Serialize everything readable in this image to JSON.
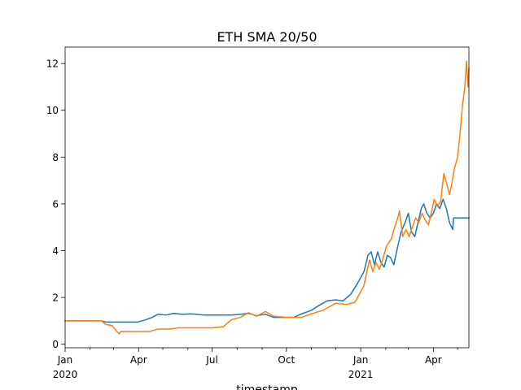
{
  "chart_data": {
    "type": "line",
    "title": "ETH SMA 20/50",
    "xlabel": "timestamp",
    "ylabel": "",
    "xlim": [
      "2020-01-01",
      "2021-05-15"
    ],
    "ylim": [
      -0.15,
      12.7
    ],
    "grid": false,
    "legend": "none",
    "x_ticks": [
      {
        "date": "2020-01-01",
        "label": "Jan",
        "sublabel": "2020"
      },
      {
        "date": "2020-04-01",
        "label": "Apr",
        "sublabel": ""
      },
      {
        "date": "2020-07-01",
        "label": "Jul",
        "sublabel": ""
      },
      {
        "date": "2020-10-01",
        "label": "Oct",
        "sublabel": ""
      },
      {
        "date": "2021-01-01",
        "label": "Jan",
        "sublabel": "2021"
      },
      {
        "date": "2021-04-01",
        "label": "Apr",
        "sublabel": ""
      }
    ],
    "x_minor_ticks": [
      "2020-02-01",
      "2020-03-01",
      "2020-05-01",
      "2020-06-01",
      "2020-08-01",
      "2020-09-01",
      "2020-11-01",
      "2020-12-01",
      "2021-02-01",
      "2021-03-01",
      "2021-05-01"
    ],
    "y_ticks": [
      0,
      2,
      4,
      6,
      8,
      10,
      12
    ],
    "series": [
      {
        "color": "#1f77b4",
        "points": [
          [
            "2020-01-01",
            1.0
          ],
          [
            "2020-02-15",
            1.0
          ],
          [
            "2020-02-20",
            0.95
          ],
          [
            "2020-03-31",
            0.95
          ],
          [
            "2020-04-10",
            1.05
          ],
          [
            "2020-04-18",
            1.15
          ],
          [
            "2020-04-25",
            1.28
          ],
          [
            "2020-05-05",
            1.25
          ],
          [
            "2020-05-15",
            1.32
          ],
          [
            "2020-05-25",
            1.28
          ],
          [
            "2020-06-05",
            1.3
          ],
          [
            "2020-06-20",
            1.25
          ],
          [
            "2020-07-10",
            1.25
          ],
          [
            "2020-07-25",
            1.25
          ],
          [
            "2020-08-05",
            1.28
          ],
          [
            "2020-08-15",
            1.32
          ],
          [
            "2020-08-25",
            1.22
          ],
          [
            "2020-09-05",
            1.28
          ],
          [
            "2020-09-15",
            1.15
          ],
          [
            "2020-10-01",
            1.15
          ],
          [
            "2020-10-10",
            1.15
          ],
          [
            "2020-10-20",
            1.3
          ],
          [
            "2020-11-01",
            1.45
          ],
          [
            "2020-11-10",
            1.65
          ],
          [
            "2020-11-20",
            1.85
          ],
          [
            "2020-12-01",
            1.9
          ],
          [
            "2020-12-10",
            1.85
          ],
          [
            "2020-12-20",
            2.15
          ],
          [
            "2020-12-28",
            2.6
          ],
          [
            "2021-01-05",
            3.1
          ],
          [
            "2021-01-10",
            3.8
          ],
          [
            "2021-01-14",
            3.95
          ],
          [
            "2021-01-18",
            3.4
          ],
          [
            "2021-01-22",
            3.95
          ],
          [
            "2021-01-26",
            3.5
          ],
          [
            "2021-01-30",
            3.3
          ],
          [
            "2021-02-03",
            3.8
          ],
          [
            "2021-02-07",
            3.7
          ],
          [
            "2021-02-11",
            3.4
          ],
          [
            "2021-02-16",
            4.2
          ],
          [
            "2021-02-20",
            4.8
          ],
          [
            "2021-02-25",
            5.2
          ],
          [
            "2021-03-01",
            5.6
          ],
          [
            "2021-03-05",
            4.8
          ],
          [
            "2021-03-09",
            4.6
          ],
          [
            "2021-03-13",
            5.2
          ],
          [
            "2021-03-17",
            5.8
          ],
          [
            "2021-03-20",
            6.0
          ],
          [
            "2021-03-24",
            5.6
          ],
          [
            "2021-03-28",
            5.4
          ],
          [
            "2021-04-01",
            5.6
          ],
          [
            "2021-04-05",
            6.0
          ],
          [
            "2021-04-09",
            5.8
          ],
          [
            "2021-04-13",
            6.2
          ],
          [
            "2021-04-17",
            5.8
          ],
          [
            "2021-04-21",
            5.2
          ],
          [
            "2021-04-25",
            4.9
          ],
          [
            "2021-04-26",
            5.4
          ],
          [
            "2021-05-15",
            5.4
          ]
        ]
      },
      {
        "color": "#ff7f0e",
        "points": [
          [
            "2020-01-01",
            1.0
          ],
          [
            "2020-02-15",
            1.0
          ],
          [
            "2020-02-20",
            0.85
          ],
          [
            "2020-02-28",
            0.8
          ],
          [
            "2020-03-05",
            0.55
          ],
          [
            "2020-03-08",
            0.45
          ],
          [
            "2020-03-10",
            0.55
          ],
          [
            "2020-04-15",
            0.55
          ],
          [
            "2020-04-25",
            0.65
          ],
          [
            "2020-05-10",
            0.65
          ],
          [
            "2020-05-20",
            0.7
          ],
          [
            "2020-06-10",
            0.7
          ],
          [
            "2020-07-01",
            0.7
          ],
          [
            "2020-07-15",
            0.75
          ],
          [
            "2020-07-25",
            1.05
          ],
          [
            "2020-08-05",
            1.15
          ],
          [
            "2020-08-15",
            1.35
          ],
          [
            "2020-08-25",
            1.2
          ],
          [
            "2020-09-05",
            1.4
          ],
          [
            "2020-09-15",
            1.2
          ],
          [
            "2020-10-01",
            1.15
          ],
          [
            "2020-10-20",
            1.15
          ],
          [
            "2020-11-01",
            1.3
          ],
          [
            "2020-11-15",
            1.45
          ],
          [
            "2020-12-01",
            1.75
          ],
          [
            "2020-12-15",
            1.7
          ],
          [
            "2020-12-25",
            1.8
          ],
          [
            "2021-01-05",
            2.5
          ],
          [
            "2021-01-08",
            3.0
          ],
          [
            "2021-01-12",
            3.6
          ],
          [
            "2021-01-16",
            3.1
          ],
          [
            "2021-01-20",
            3.5
          ],
          [
            "2021-01-24",
            3.2
          ],
          [
            "2021-01-28",
            3.6
          ],
          [
            "2021-02-02",
            4.2
          ],
          [
            "2021-02-08",
            4.5
          ],
          [
            "2021-02-12",
            5.0
          ],
          [
            "2021-02-16",
            5.4
          ],
          [
            "2021-02-18",
            5.7
          ],
          [
            "2021-02-22",
            4.6
          ],
          [
            "2021-02-26",
            4.9
          ],
          [
            "2021-03-02",
            4.6
          ],
          [
            "2021-03-06",
            5.0
          ],
          [
            "2021-03-10",
            5.4
          ],
          [
            "2021-03-14",
            5.2
          ],
          [
            "2021-03-18",
            5.6
          ],
          [
            "2021-03-22",
            5.3
          ],
          [
            "2021-03-26",
            5.1
          ],
          [
            "2021-03-30",
            5.7
          ],
          [
            "2021-04-02",
            6.2
          ],
          [
            "2021-04-06",
            5.9
          ],
          [
            "2021-04-10",
            6.1
          ],
          [
            "2021-04-14",
            7.3
          ],
          [
            "2021-04-18",
            6.8
          ],
          [
            "2021-04-21",
            6.4
          ],
          [
            "2021-04-24",
            6.9
          ],
          [
            "2021-04-27",
            7.5
          ],
          [
            "2021-05-01",
            8.0
          ],
          [
            "2021-05-04",
            9.0
          ],
          [
            "2021-05-07",
            10.2
          ],
          [
            "2021-05-10",
            11.0
          ],
          [
            "2021-05-12",
            12.1
          ],
          [
            "2021-05-14",
            11.0
          ],
          [
            "2021-05-15",
            11.8
          ]
        ]
      }
    ]
  }
}
